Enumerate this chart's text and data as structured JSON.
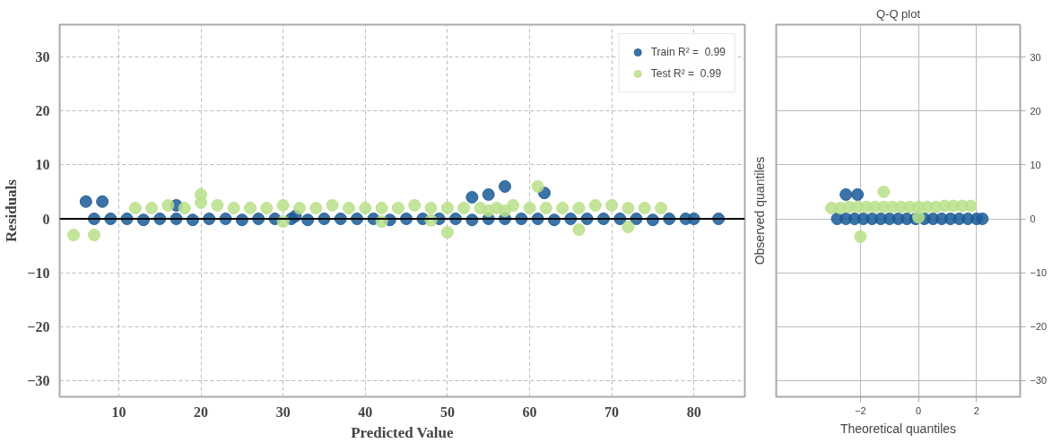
{
  "chart_data": [
    {
      "type": "scatter",
      "xlabel": "Predicted Value",
      "ylabel": "Residuals",
      "xlim": [
        2.8,
        86.2
      ],
      "ylim": [
        -33,
        36
      ],
      "xticks": [
        10,
        20,
        30,
        40,
        50,
        60,
        70,
        80
      ],
      "yticks": [
        {
          "value": -30,
          "label": "−30"
        },
        {
          "value": -20,
          "label": "−20"
        },
        {
          "value": -10,
          "label": "−10"
        },
        0,
        10,
        20,
        30
      ],
      "grid": true,
      "legend": "top right",
      "marker": "circle",
      "ref_lines": [
        {
          "axis": "y",
          "value": 0,
          "color": "#000000"
        }
      ],
      "series": [
        {
          "name": "Train R² =  0.99",
          "color": "#1a5a96",
          "x": [
            6,
            8,
            7,
            9,
            11,
            13,
            15,
            17,
            19,
            21,
            23,
            25,
            27,
            29,
            31,
            33,
            35,
            37,
            39,
            41,
            43,
            45,
            47,
            49,
            51,
            53,
            55,
            57,
            59,
            61,
            63,
            65,
            67,
            69,
            71,
            73,
            75,
            77,
            79,
            80,
            83,
            53,
            55,
            57,
            61.8,
            17,
            31.5
          ],
          "values": [
            3.2,
            3.2,
            0,
            0,
            0,
            -0.2,
            0,
            0,
            -0.2,
            0,
            0,
            -0.2,
            0,
            0,
            0,
            -0.2,
            0,
            0,
            0,
            0,
            -0.2,
            0,
            0,
            0,
            0,
            -0.2,
            0,
            0,
            0,
            0,
            -0.2,
            0,
            0,
            0,
            0,
            0,
            -0.2,
            0,
            0,
            0,
            0,
            4,
            4.5,
            6,
            4.8,
            2.5,
            0.5
          ]
        },
        {
          "name": "Test R² =  0.99",
          "color": "#b9e08a",
          "x": [
            4.5,
            7,
            12,
            14,
            16,
            18,
            20,
            22,
            24,
            26,
            28,
            30,
            32,
            34,
            36,
            38,
            40,
            42,
            44,
            46,
            48,
            50,
            52,
            54,
            56,
            58,
            60,
            62,
            64,
            66,
            68,
            70,
            72,
            74,
            76,
            20,
            50,
            66,
            72,
            57,
            30,
            42,
            48,
            61,
            55
          ],
          "values": [
            -3,
            -3,
            2,
            2,
            2.5,
            2,
            3,
            2.5,
            2,
            2,
            2,
            2.5,
            2,
            2,
            2.5,
            2,
            2,
            2,
            2,
            2.5,
            2,
            2,
            2,
            2,
            2,
            2.5,
            2,
            2,
            2,
            2,
            2.5,
            2.5,
            2,
            2,
            2,
            4.5,
            -2.5,
            -2,
            -1.5,
            1.5,
            -0.5,
            -0.5,
            -0.3,
            6,
            1.5
          ]
        }
      ]
    },
    {
      "type": "scatter",
      "title": "Q-Q plot",
      "xlabel": "Theoretical quantiles",
      "ylabel": "Observed quantiles",
      "xlim": [
        -4.9,
        3.5
      ],
      "ylim": [
        -33,
        36
      ],
      "xticks": [
        {
          "value": -2,
          "label": "−2"
        },
        0,
        2
      ],
      "yticks": [
        {
          "value": -30,
          "label": "−30"
        },
        {
          "value": -20,
          "label": "−20"
        },
        {
          "value": -10,
          "label": "−10"
        },
        0,
        10,
        20,
        30
      ],
      "grid": true,
      "marker": "circle",
      "series": [
        {
          "color": "#1a5a96",
          "x": [
            -2.5,
            -2.1,
            -2.8,
            -2.5,
            -2.2,
            -1.9,
            -1.6,
            -1.3,
            -1,
            -0.7,
            -0.4,
            -0.1,
            0.2,
            0.5,
            0.8,
            1.1,
            1.4,
            1.7,
            2,
            2.2
          ],
          "values": [
            4.5,
            4.5,
            0,
            0,
            0,
            0,
            0,
            0,
            0,
            0,
            0,
            0,
            0,
            0,
            0,
            0,
            0,
            0,
            0,
            0
          ]
        },
        {
          "color": "#b9e08a",
          "x": [
            -3,
            -2.7,
            -2.4,
            -2.1,
            -1.8,
            -1.5,
            -1.2,
            -0.9,
            -0.6,
            -0.3,
            0,
            0.3,
            0.6,
            0.9,
            1.2,
            1.5,
            1.8,
            -1.2,
            -2,
            0
          ],
          "values": [
            2,
            2,
            2.2,
            2.2,
            2.2,
            2.2,
            2.2,
            2.2,
            2.2,
            2.2,
            2.2,
            2.2,
            2.2,
            2.4,
            2.4,
            2.4,
            2.4,
            5,
            -3.3,
            0.3
          ]
        }
      ]
    }
  ]
}
